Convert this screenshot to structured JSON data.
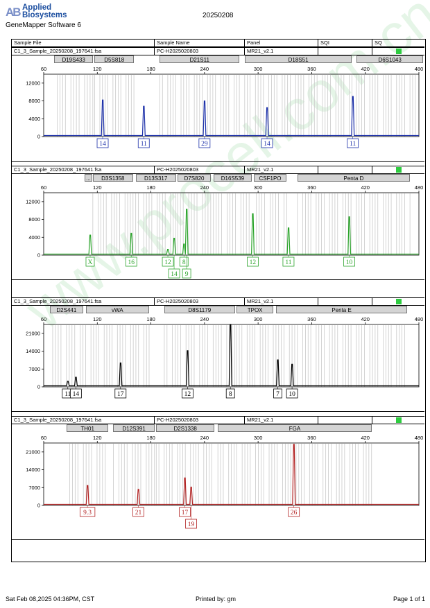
{
  "header": {
    "brand_line1": "Applied",
    "brand_line2": "Biosystems",
    "software": "GeneMapper Software 6",
    "date": "20250208"
  },
  "columns": {
    "sample_file": "Sample File",
    "sample_name": "Sample Name",
    "panel": "Panel",
    "sqi": "SQI",
    "sq": "SQ"
  },
  "footer": {
    "timestamp": "Sat Feb 08,2025 04:36PM, CST",
    "printed_by": "Printed by: gm",
    "page": "Page 1 of 1"
  },
  "watermark": "www.procell.com.cn",
  "chart_data": [
    {
      "type": "line",
      "sample_file": "C1_3_Sample_20250208_197641.fsa",
      "sample_name": "PC-H2025020803",
      "panel": "MR21_v2.1",
      "color": "#1a2ea8",
      "x_ticks": [
        60,
        120,
        180,
        240,
        300,
        360,
        420,
        480
      ],
      "xlim": [
        60,
        480
      ],
      "y_ticks": [
        0,
        4000,
        8000,
        12000
      ],
      "ylim": [
        0,
        14000
      ],
      "markers": [
        {
          "label": "D19S433",
          "start": 72,
          "end": 115
        },
        {
          "label": "D5S818",
          "start": 117,
          "end": 161
        },
        {
          "label": "D21S11",
          "start": 190,
          "end": 279
        },
        {
          "label": "D18S51",
          "start": 285,
          "end": 405
        },
        {
          "label": "D6S1043",
          "start": 410,
          "end": 485
        }
      ],
      "peaks": [
        {
          "x": 126,
          "y": 8200
        },
        {
          "x": 172,
          "y": 6800
        },
        {
          "x": 240,
          "y": 8000
        },
        {
          "x": 310,
          "y": 6500
        },
        {
          "x": 406,
          "y": 9000
        }
      ],
      "alleles": [
        {
          "x": 126,
          "label": "14",
          "row": 0
        },
        {
          "x": 172,
          "label": "11",
          "row": 0
        },
        {
          "x": 240,
          "label": "29",
          "row": 0
        },
        {
          "x": 310,
          "label": "14",
          "row": 0
        },
        {
          "x": 406,
          "label": "11",
          "row": 0
        }
      ]
    },
    {
      "type": "line",
      "sample_file": "C1_3_Sample_20250208_197641.fsa",
      "sample_name": "PC-H2025020803",
      "panel": "MR21_v2.1",
      "color": "#2aa32a",
      "x_ticks": [
        60,
        120,
        180,
        240,
        300,
        360,
        420,
        480
      ],
      "xlim": [
        60,
        480
      ],
      "y_ticks": [
        0,
        4000,
        8000,
        12000
      ],
      "ylim": [
        0,
        14000
      ],
      "markers": [
        {
          "label": "...",
          "start": 106,
          "end": 114
        },
        {
          "label": "D3S1358",
          "start": 115,
          "end": 160
        },
        {
          "label": "D13S317",
          "start": 163,
          "end": 208
        },
        {
          "label": "D7S820",
          "start": 210,
          "end": 247
        },
        {
          "label": "D16S539",
          "start": 250,
          "end": 293
        },
        {
          "label": "CSF1PO",
          "start": 295,
          "end": 332
        },
        {
          "label": "Penta D",
          "start": 344,
          "end": 470
        }
      ],
      "peaks": [
        {
          "x": 112,
          "y": 4500
        },
        {
          "x": 158,
          "y": 4900
        },
        {
          "x": 199,
          "y": 1300
        },
        {
          "x": 206,
          "y": 3800
        },
        {
          "x": 217,
          "y": 2500
        },
        {
          "x": 220,
          "y": 10300
        },
        {
          "x": 294,
          "y": 9300
        },
        {
          "x": 334,
          "y": 6100
        },
        {
          "x": 402,
          "y": 8600
        }
      ],
      "alleles": [
        {
          "x": 112,
          "label": "X",
          "row": 0
        },
        {
          "x": 158,
          "label": "16",
          "row": 0
        },
        {
          "x": 199,
          "label": "12",
          "row": 0
        },
        {
          "x": 206,
          "label": "14",
          "row": 1
        },
        {
          "x": 217,
          "label": "8",
          "row": 0
        },
        {
          "x": 220,
          "label": "9",
          "row": 1
        },
        {
          "x": 294,
          "label": "12",
          "row": 0
        },
        {
          "x": 334,
          "label": "11",
          "row": 0
        },
        {
          "x": 402,
          "label": "10",
          "row": 0
        }
      ]
    },
    {
      "type": "line",
      "sample_file": "C1_3_Sample_20250208_197641.fsa",
      "sample_name": "PC-H2025020803",
      "panel": "MR21_v2.1",
      "color": "#000000",
      "x_ticks": [
        60,
        120,
        180,
        240,
        300,
        360,
        420,
        480
      ],
      "xlim": [
        60,
        480
      ],
      "y_ticks": [
        0,
        7000,
        14000,
        21000
      ],
      "ylim": [
        0,
        24500
      ],
      "markers": [
        {
          "label": "D2S441",
          "start": 67,
          "end": 104
        },
        {
          "label": "vWA",
          "start": 107,
          "end": 178
        },
        {
          "label": "D8S1179",
          "start": 195,
          "end": 274
        },
        {
          "label": "TPOX",
          "start": 276,
          "end": 317
        },
        {
          "label": "Penta E",
          "start": 320,
          "end": 467
        }
      ],
      "peaks": [
        {
          "x": 87,
          "y": 2200
        },
        {
          "x": 96,
          "y": 3800
        },
        {
          "x": 146,
          "y": 9400
        },
        {
          "x": 221,
          "y": 14200
        },
        {
          "x": 269,
          "y": 24500
        },
        {
          "x": 322,
          "y": 10600
        },
        {
          "x": 338,
          "y": 8900
        }
      ],
      "alleles": [
        {
          "x": 87,
          "label": "11",
          "row": 0
        },
        {
          "x": 96,
          "label": "14",
          "row": 0
        },
        {
          "x": 146,
          "label": "17",
          "row": 0
        },
        {
          "x": 221,
          "label": "12",
          "row": 0
        },
        {
          "x": 269,
          "label": "8",
          "row": 0
        },
        {
          "x": 322,
          "label": "7",
          "row": 0
        },
        {
          "x": 338,
          "label": "10",
          "row": 0
        }
      ]
    },
    {
      "type": "line",
      "sample_file": "C1_3_Sample_20250208_197641.fsa",
      "sample_name": "PC-H2025020803",
      "panel": "MR21_v2.1",
      "color": "#b22222",
      "x_ticks": [
        60,
        120,
        180,
        240,
        300,
        360,
        420,
        480
      ],
      "xlim": [
        60,
        480
      ],
      "y_ticks": [
        0,
        7000,
        14000,
        21000
      ],
      "ylim": [
        0,
        24500
      ],
      "markers": [
        {
          "label": "TH01",
          "start": 86,
          "end": 132
        },
        {
          "label": "D12S391",
          "start": 138,
          "end": 184
        },
        {
          "label": "D2S1338",
          "start": 186,
          "end": 251
        },
        {
          "label": "FGA",
          "start": 255,
          "end": 427
        }
      ],
      "peaks": [
        {
          "x": 109,
          "y": 7800
        },
        {
          "x": 166,
          "y": 6300
        },
        {
          "x": 218,
          "y": 10800
        },
        {
          "x": 225,
          "y": 7200
        },
        {
          "x": 340,
          "y": 24000
        }
      ],
      "alleles": [
        {
          "x": 109,
          "label": "9.3",
          "row": 0
        },
        {
          "x": 166,
          "label": "21",
          "row": 0
        },
        {
          "x": 218,
          "label": "17",
          "row": 0
        },
        {
          "x": 225,
          "label": "19",
          "row": 1
        },
        {
          "x": 340,
          "label": "26",
          "row": 0
        }
      ]
    }
  ]
}
